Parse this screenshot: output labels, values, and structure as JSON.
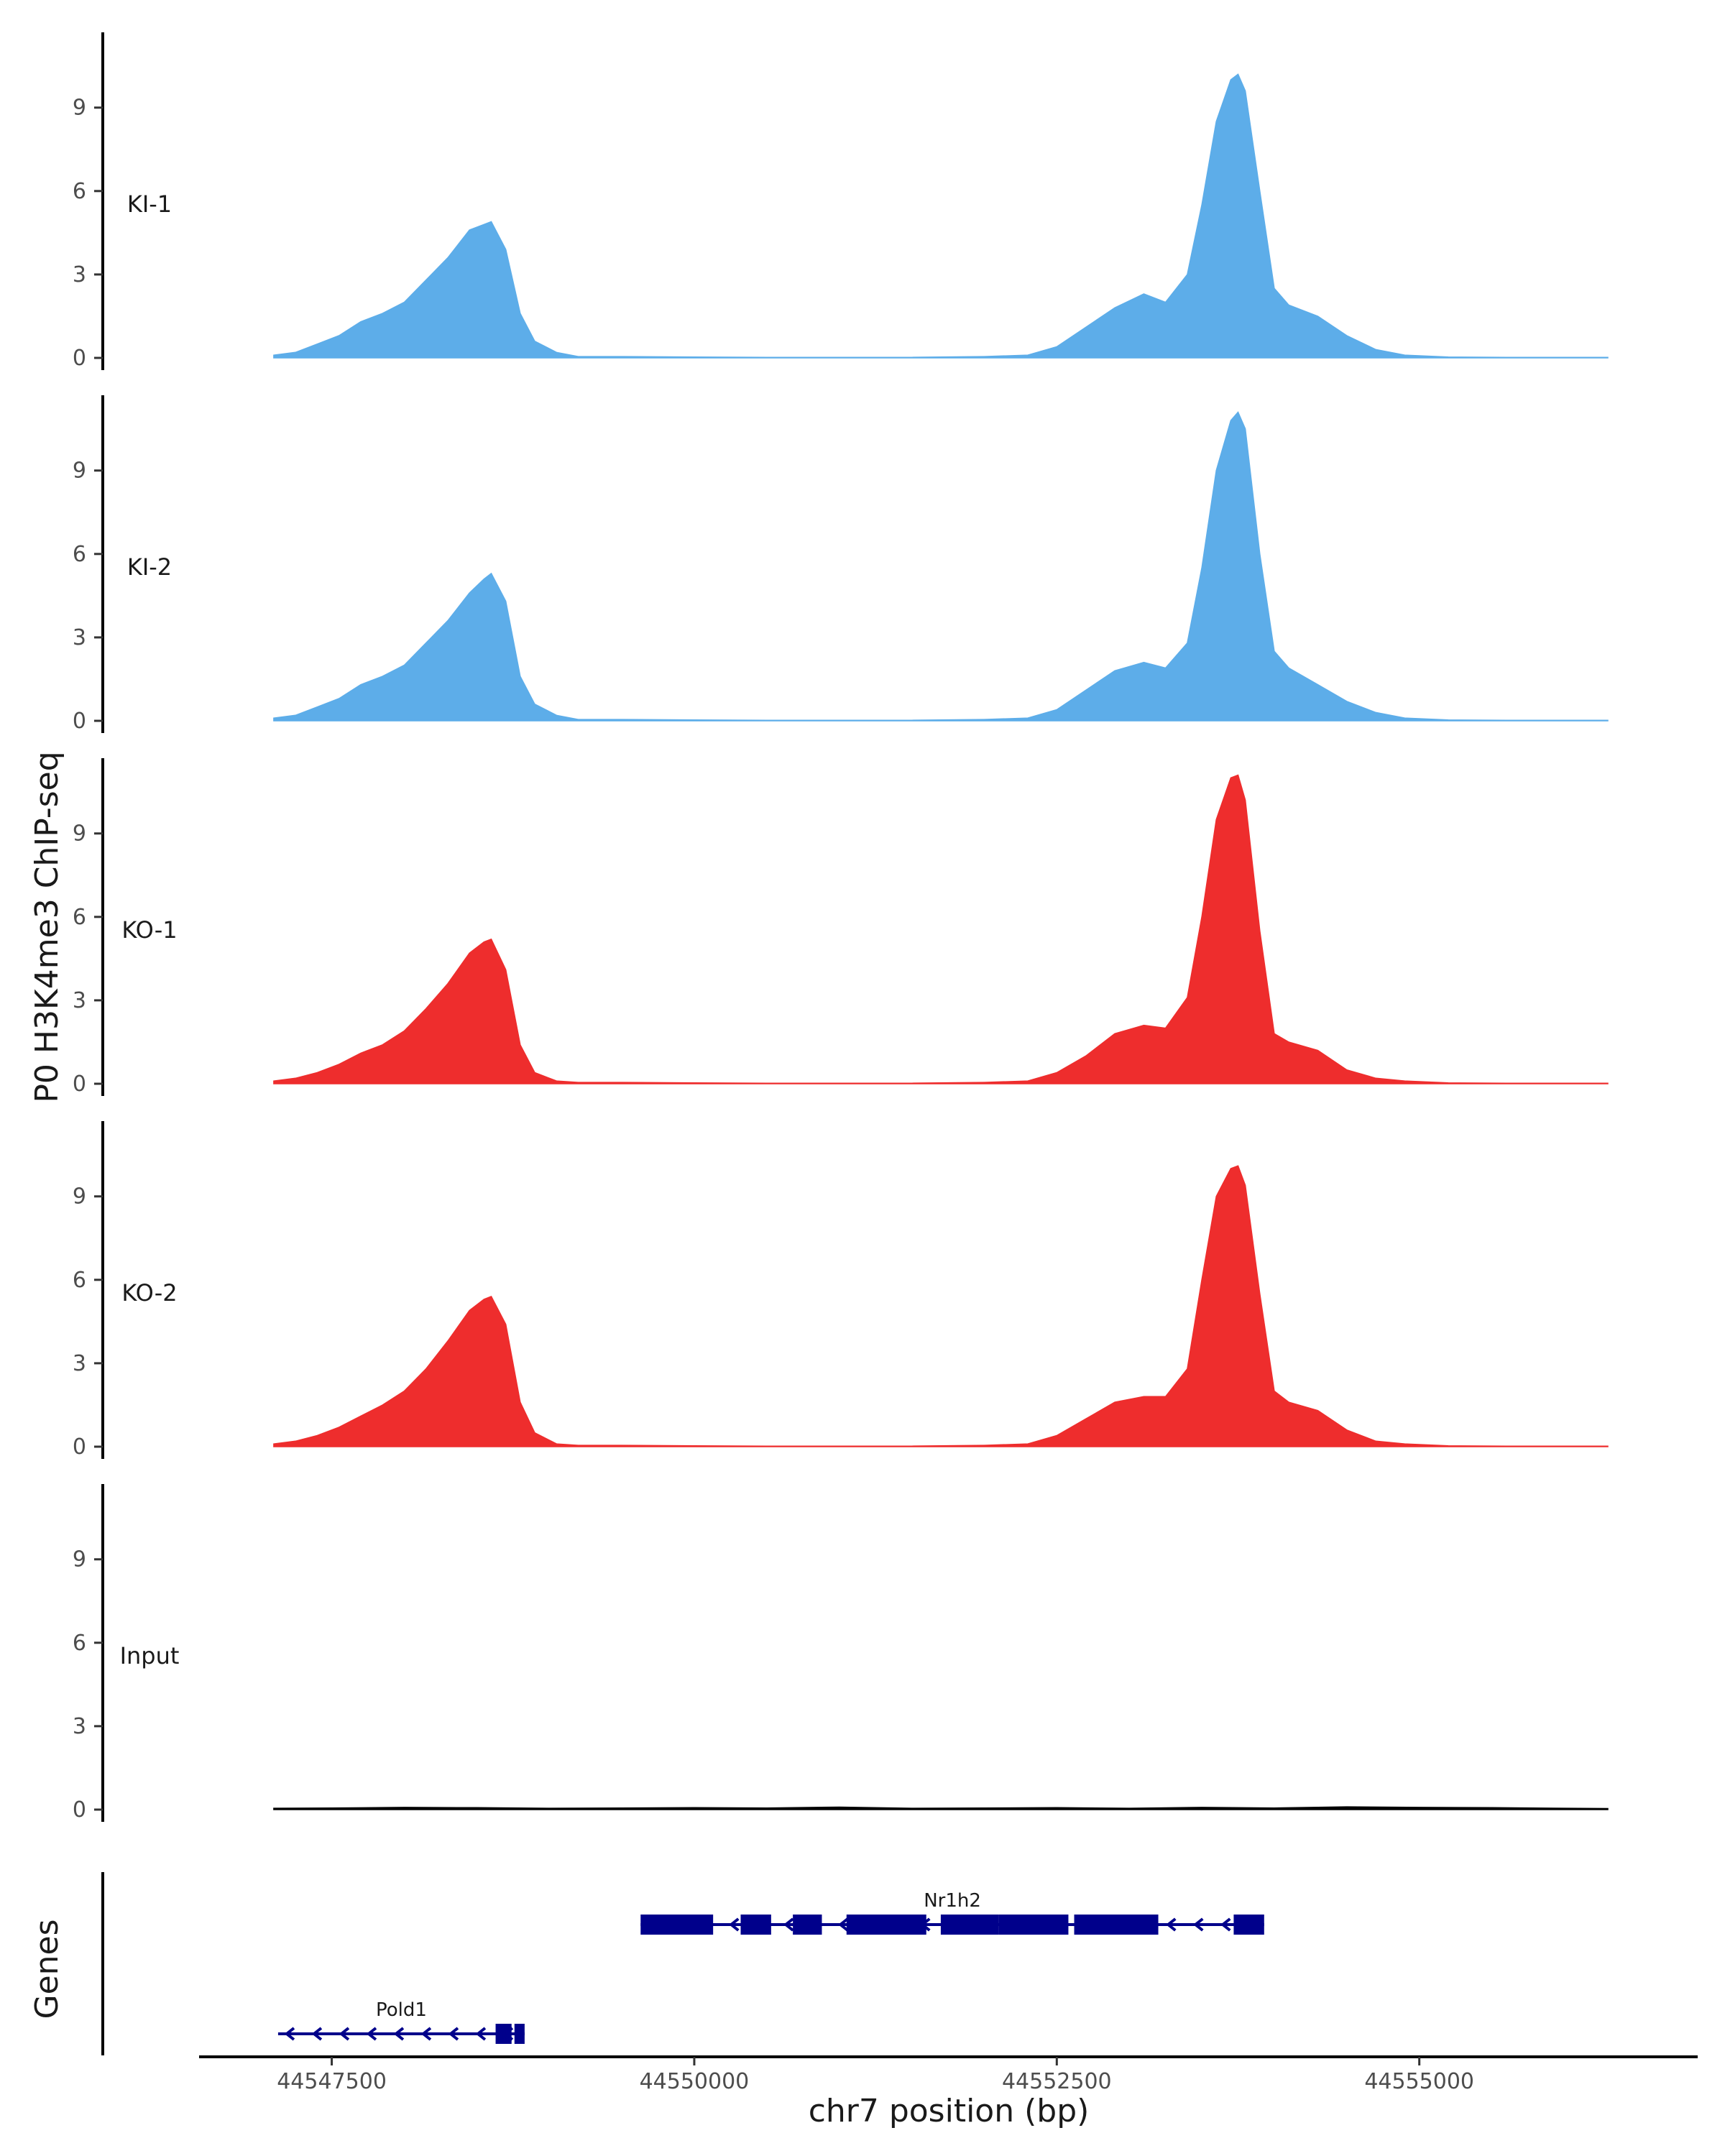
{
  "chart_data": {
    "type": "area",
    "ylabel": "P0 H3K4me3 ChIP-seq",
    "xlabel": "chr7 position (bp)",
    "genes_label": "Genes",
    "xlim": [
      44546600,
      44556900
    ],
    "ylim": [
      0,
      11.5
    ],
    "y_ticks": [
      0,
      3,
      6,
      9
    ],
    "x_ticks": [
      44547500,
      44550000,
      44552500,
      44555000
    ],
    "x_tick_labels": [
      "44547500",
      "44550000",
      "44552500",
      "44555000"
    ],
    "colors": {
      "KI": "#5dade9",
      "KO": "#ee2d2d",
      "Input": "#000000",
      "gene": "#00008b"
    },
    "tracks": [
      {
        "label": "KI-1",
        "color": "#5dade9",
        "x": [
          44547100,
          44547250,
          44547400,
          44547550,
          44547700,
          44547850,
          44548000,
          44548150,
          44548300,
          44548450,
          44548550,
          44548600,
          44548700,
          44548800,
          44548900,
          44549050,
          44549200,
          44549500,
          44550000,
          44550500,
          44551000,
          44551500,
          44552000,
          44552300,
          44552500,
          44552700,
          44552900,
          44553100,
          44553250,
          44553400,
          44553500,
          44553600,
          44553700,
          44553750,
          44553800,
          44553900,
          44554000,
          44554100,
          44554300,
          44554500,
          44554700,
          44554900,
          44555200,
          44555600,
          44556000,
          44556300
        ],
        "y": [
          0.1,
          0.2,
          0.5,
          0.8,
          1.3,
          1.6,
          2.0,
          2.8,
          3.6,
          4.6,
          4.8,
          4.9,
          3.9,
          1.6,
          0.6,
          0.2,
          0.05,
          0.05,
          0.03,
          0.02,
          0.02,
          0.02,
          0.05,
          0.1,
          0.4,
          1.1,
          1.8,
          2.3,
          2.0,
          3.0,
          5.5,
          8.5,
          10.0,
          10.2,
          9.6,
          6.0,
          2.5,
          1.9,
          1.5,
          0.8,
          0.3,
          0.1,
          0.03,
          0.02,
          0.02,
          0.02
        ]
      },
      {
        "label": "KI-2",
        "color": "#5dade9",
        "x": [
          44547100,
          44547250,
          44547400,
          44547550,
          44547700,
          44547850,
          44548000,
          44548150,
          44548300,
          44548450,
          44548550,
          44548600,
          44548700,
          44548800,
          44548900,
          44549050,
          44549200,
          44549500,
          44550000,
          44550500,
          44551000,
          44551500,
          44552000,
          44552300,
          44552500,
          44552700,
          44552900,
          44553100,
          44553250,
          44553400,
          44553500,
          44553600,
          44553700,
          44553750,
          44553800,
          44553900,
          44554000,
          44554100,
          44554300,
          44554500,
          44554700,
          44554900,
          44555200,
          44555600,
          44556000,
          44556300
        ],
        "y": [
          0.1,
          0.2,
          0.5,
          0.8,
          1.3,
          1.6,
          2.0,
          2.8,
          3.6,
          4.6,
          5.1,
          5.3,
          4.3,
          1.6,
          0.6,
          0.2,
          0.05,
          0.05,
          0.03,
          0.02,
          0.02,
          0.02,
          0.05,
          0.1,
          0.4,
          1.1,
          1.8,
          2.1,
          1.9,
          2.8,
          5.5,
          9.0,
          10.8,
          11.1,
          10.5,
          6.0,
          2.5,
          1.9,
          1.3,
          0.7,
          0.3,
          0.1,
          0.03,
          0.02,
          0.02,
          0.02
        ]
      },
      {
        "label": "KO-1",
        "color": "#ee2d2d",
        "x": [
          44547100,
          44547250,
          44547400,
          44547550,
          44547700,
          44547850,
          44548000,
          44548150,
          44548300,
          44548450,
          44548550,
          44548600,
          44548700,
          44548800,
          44548900,
          44549050,
          44549200,
          44549500,
          44550000,
          44550500,
          44551000,
          44551500,
          44552000,
          44552300,
          44552500,
          44552700,
          44552900,
          44553100,
          44553250,
          44553400,
          44553500,
          44553600,
          44553700,
          44553750,
          44553800,
          44553900,
          44554000,
          44554100,
          44554300,
          44554500,
          44554700,
          44554900,
          44555200,
          44555600,
          44556000,
          44556300
        ],
        "y": [
          0.1,
          0.2,
          0.4,
          0.7,
          1.1,
          1.4,
          1.9,
          2.7,
          3.6,
          4.7,
          5.1,
          5.2,
          4.1,
          1.4,
          0.4,
          0.1,
          0.05,
          0.05,
          0.03,
          0.02,
          0.02,
          0.02,
          0.05,
          0.1,
          0.4,
          1.0,
          1.8,
          2.1,
          2.0,
          3.1,
          6.0,
          9.5,
          11.0,
          11.1,
          10.2,
          5.5,
          1.8,
          1.5,
          1.2,
          0.5,
          0.2,
          0.1,
          0.03,
          0.02,
          0.02,
          0.02
        ]
      },
      {
        "label": "KO-2",
        "color": "#ee2d2d",
        "x": [
          44547100,
          44547250,
          44547400,
          44547550,
          44547700,
          44547850,
          44548000,
          44548150,
          44548300,
          44548450,
          44548550,
          44548600,
          44548700,
          44548800,
          44548900,
          44549050,
          44549200,
          44549500,
          44550000,
          44550500,
          44551000,
          44551500,
          44552000,
          44552300,
          44552500,
          44552700,
          44552900,
          44553100,
          44553250,
          44553400,
          44553500,
          44553600,
          44553700,
          44553750,
          44553800,
          44553900,
          44554000,
          44554100,
          44554300,
          44554500,
          44554700,
          44554900,
          44555200,
          44555600,
          44556000,
          44556300
        ],
        "y": [
          0.1,
          0.2,
          0.4,
          0.7,
          1.1,
          1.5,
          2.0,
          2.8,
          3.8,
          4.9,
          5.3,
          5.4,
          4.4,
          1.6,
          0.5,
          0.1,
          0.05,
          0.05,
          0.03,
          0.02,
          0.02,
          0.02,
          0.05,
          0.1,
          0.4,
          1.0,
          1.6,
          1.8,
          1.8,
          2.8,
          6.0,
          9.0,
          10.0,
          10.1,
          9.4,
          5.5,
          2.0,
          1.6,
          1.3,
          0.6,
          0.2,
          0.1,
          0.03,
          0.02,
          0.02,
          0.02
        ]
      },
      {
        "label": "Input",
        "color": "#000000",
        "x": [
          44547100,
          44547500,
          44548000,
          44548500,
          44549000,
          44549500,
          44550000,
          44550500,
          44551000,
          44551500,
          44552000,
          44552500,
          44553000,
          44553500,
          44554000,
          44554500,
          44555000,
          44555500,
          44556000,
          44556300
        ],
        "y": [
          0.05,
          0.06,
          0.08,
          0.07,
          0.05,
          0.06,
          0.07,
          0.06,
          0.09,
          0.05,
          0.06,
          0.07,
          0.05,
          0.08,
          0.06,
          0.1,
          0.08,
          0.07,
          0.05,
          0.04
        ]
      }
    ],
    "genes": [
      {
        "name": "Nr1h2",
        "row": 1,
        "strand": "-",
        "start": 44549630,
        "end": 44553930,
        "exons": [
          [
            44549630,
            44550130
          ],
          [
            44550320,
            44550530
          ],
          [
            44550680,
            44550880
          ],
          [
            44551050,
            44551600
          ],
          [
            44551700,
            44552100
          ],
          [
            44552100,
            44552580
          ],
          [
            44552620,
            44553200
          ],
          [
            44553720,
            44553930
          ]
        ]
      },
      {
        "name": "Pold1",
        "row": 2,
        "strand": "-",
        "start": 44547130,
        "end": 44548830,
        "exons": [
          [
            44548630,
            44548740
          ],
          [
            44548760,
            44548830
          ]
        ]
      }
    ]
  }
}
